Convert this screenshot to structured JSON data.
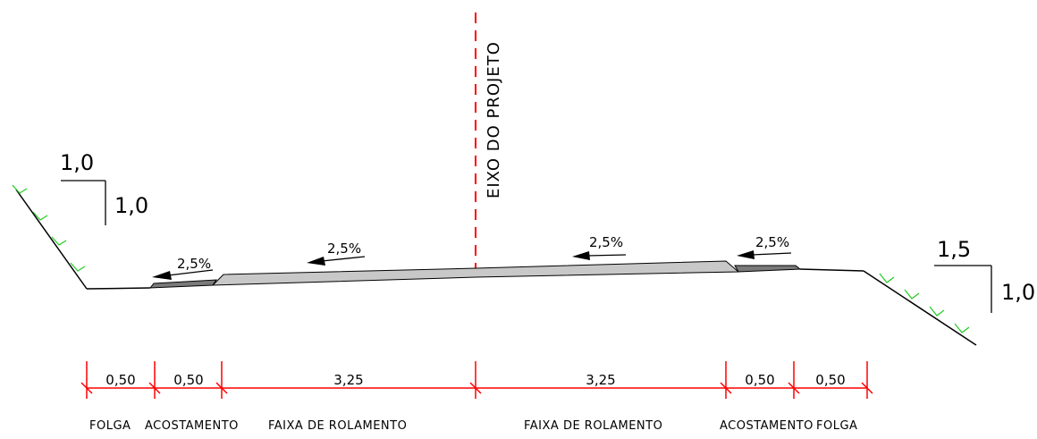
{
  "diagram": {
    "axis_label": "EIXO DO PROJETO",
    "left_talude": {
      "horizontal": "1,0",
      "vertical": "1,0"
    },
    "right_talude": {
      "horizontal": "1,5",
      "vertical": "1,0"
    },
    "slopes": [
      "2,5%",
      "2,5%",
      "2,5%",
      "2,5%"
    ],
    "dimensions": [
      "0,50",
      "0,50",
      "3,25",
      "3,25",
      "0,50",
      "0,50"
    ],
    "zones": [
      "FOLGA",
      "ACOSTAMENTO",
      "FAIXA DE ROLAMENTO",
      "FAIXA DE ROLAMENTO",
      "ACOSTAMENTO",
      "FOLGA"
    ],
    "colors": {
      "dimension": "#ff0000",
      "axis": "#ff0000",
      "grass": "#22cc22",
      "pavement": "#c8c8c8",
      "shoulder": "#7a7a7a",
      "line": "#000000"
    }
  }
}
